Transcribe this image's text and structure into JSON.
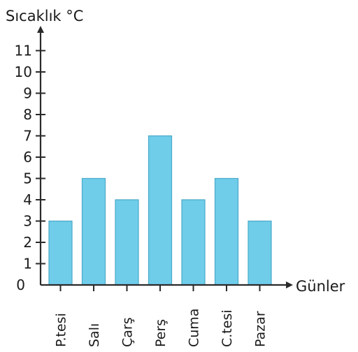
{
  "chart_data": {
    "type": "bar",
    "title": "",
    "ylabel": "Sıcaklık °C",
    "xlabel": "Günler",
    "categories": [
      "P.tesi",
      "Salı",
      "Çarş",
      "Perş",
      "Cuma",
      "C.tesi",
      "Pazar"
    ],
    "values": [
      3,
      5,
      4,
      7,
      4,
      5,
      3
    ],
    "ylim": [
      0,
      11
    ],
    "yticks": [
      0,
      1,
      2,
      3,
      4,
      5,
      6,
      7,
      8,
      9,
      10,
      11
    ],
    "grid": false,
    "colors": {
      "bar": "#6fcdea",
      "bar_edge": "#4aa9c9",
      "axis": "#2a2a2a"
    }
  }
}
